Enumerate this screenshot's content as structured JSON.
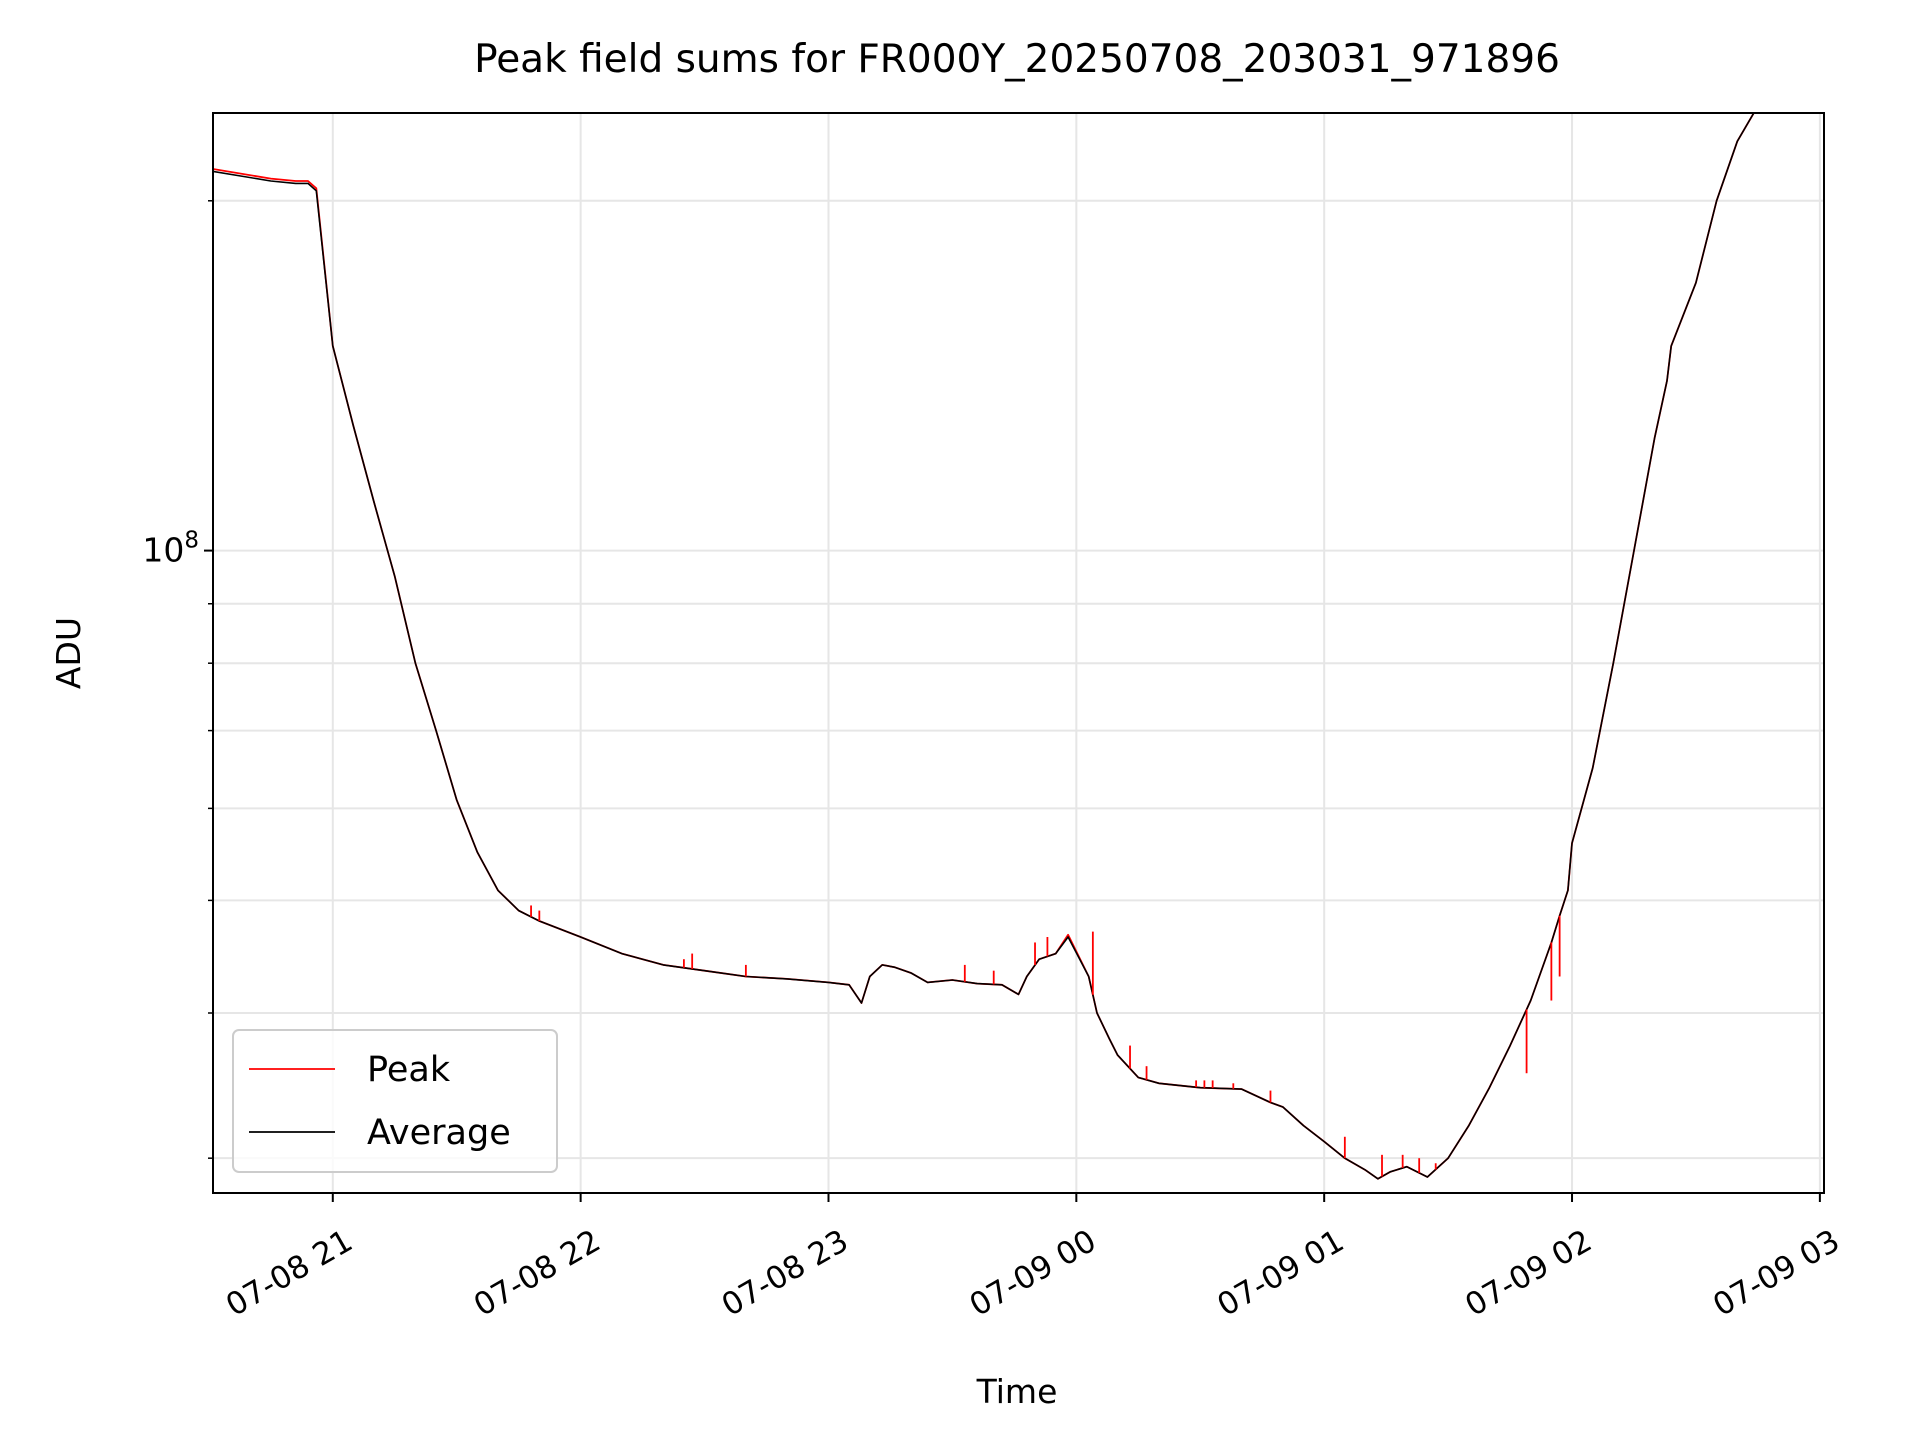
{
  "chart_data": {
    "type": "line",
    "title": "Peak field sums for FR000Y_20250708_203031_971896",
    "xlabel": "Time",
    "ylabel": "ADU",
    "yscale": "log",
    "y_tick_label": "10^8",
    "y_tick_value": 100000000,
    "x_tick_labels": [
      "07-08 21",
      "07-08 22",
      "07-08 23",
      "07-09 00",
      "07-09 01",
      "07-09 02",
      "07-09 03"
    ],
    "x_ticks": [
      "2025-07-08 21:00",
      "2025-07-08 22:00",
      "2025-07-08 23:00",
      "2025-07-09 00:00",
      "2025-07-09 01:00",
      "2025-07-09 02:00",
      "2025-07-09 03:00"
    ],
    "xlim": [
      "2025-07-08 20:31",
      "2025-07-09 03:01"
    ],
    "ylim": [
      28000000,
      238000000
    ],
    "grid": true,
    "legend_position": "lower-left",
    "series": [
      {
        "name": "Peak",
        "color": "#ff0000",
        "x": [
          "2025-07-08 20:31",
          "2025-07-08 20:45",
          "2025-07-08 20:51",
          "2025-07-08 20:54",
          "2025-07-08 20:56",
          "2025-07-08 21:00",
          "2025-07-08 21:05",
          "2025-07-08 21:10",
          "2025-07-08 21:15",
          "2025-07-08 21:20",
          "2025-07-08 21:25",
          "2025-07-08 21:30",
          "2025-07-08 21:35",
          "2025-07-08 21:40",
          "2025-07-08 21:45",
          "2025-07-08 21:50",
          "2025-07-08 22:00",
          "2025-07-08 22:10",
          "2025-07-08 22:20",
          "2025-07-08 22:30",
          "2025-07-08 22:40",
          "2025-07-08 22:50",
          "2025-07-08 23:00",
          "2025-07-08 23:05",
          "2025-07-08 23:08",
          "2025-07-08 23:10",
          "2025-07-08 23:13",
          "2025-07-08 23:16",
          "2025-07-08 23:20",
          "2025-07-08 23:24",
          "2025-07-08 23:30",
          "2025-07-08 23:36",
          "2025-07-08 23:42",
          "2025-07-08 23:46",
          "2025-07-08 23:48",
          "2025-07-08 23:51",
          "2025-07-08 23:55",
          "2025-07-08 23:58",
          "2025-07-09 00:03",
          "2025-07-09 00:05",
          "2025-07-09 00:08",
          "2025-07-09 00:10",
          "2025-07-09 00:15",
          "2025-07-09 00:20",
          "2025-07-09 00:30",
          "2025-07-09 00:40",
          "2025-07-09 00:47",
          "2025-07-09 00:50",
          "2025-07-09 00:55",
          "2025-07-09 01:00",
          "2025-07-09 01:05",
          "2025-07-09 01:10",
          "2025-07-09 01:13",
          "2025-07-09 01:16",
          "2025-07-09 01:20",
          "2025-07-09 01:25",
          "2025-07-09 01:30",
          "2025-07-09 01:35",
          "2025-07-09 01:40",
          "2025-07-09 01:45",
          "2025-07-09 01:50",
          "2025-07-09 01:55",
          "2025-07-09 01:57",
          "2025-07-09 01:59",
          "2025-07-09 02:00",
          "2025-07-09 02:05",
          "2025-07-09 02:10",
          "2025-07-09 02:15",
          "2025-07-09 02:20",
          "2025-07-09 02:23",
          "2025-07-09 02:24",
          "2025-07-09 02:30",
          "2025-07-09 02:35",
          "2025-07-09 02:40",
          "2025-07-09 02:44"
        ],
        "y": [
          213000000,
          209000000,
          208000000,
          208000000,
          205000000,
          150000000,
          128000000,
          110000000,
          95000000,
          80000000,
          70000000,
          61000000,
          55000000,
          51000000,
          49000000,
          48000000,
          46500000,
          45000000,
          44000000,
          43500000,
          43000000,
          42800000,
          42500000,
          42300000,
          40800000,
          43000000,
          44000000,
          43800000,
          43300000,
          42500000,
          42700000,
          42400000,
          42300000,
          41500000,
          43000000,
          44500000,
          45000000,
          46700000,
          43000000,
          40000000,
          38000000,
          36800000,
          35200000,
          34800000,
          34500000,
          34400000,
          33500000,
          33200000,
          32000000,
          31000000,
          30000000,
          29300000,
          28800000,
          29200000,
          29500000,
          28900000,
          30000000,
          32000000,
          34500000,
          37500000,
          41000000,
          46000000,
          48500000,
          51000000,
          56000000,
          65000000,
          80000000,
          100000000,
          125000000,
          140000000,
          150000000,
          170000000,
          200000000,
          225000000,
          238000000
        ]
      },
      {
        "name": "Average",
        "color": "#000000",
        "x": [
          "2025-07-08 20:31",
          "2025-07-08 20:45",
          "2025-07-08 20:51",
          "2025-07-08 20:54",
          "2025-07-08 20:56",
          "2025-07-08 21:00",
          "2025-07-08 21:05",
          "2025-07-08 21:10",
          "2025-07-08 21:15",
          "2025-07-08 21:20",
          "2025-07-08 21:25",
          "2025-07-08 21:30",
          "2025-07-08 21:35",
          "2025-07-08 21:40",
          "2025-07-08 21:45",
          "2025-07-08 21:50",
          "2025-07-08 22:00",
          "2025-07-08 22:10",
          "2025-07-08 22:20",
          "2025-07-08 22:30",
          "2025-07-08 22:40",
          "2025-07-08 22:50",
          "2025-07-08 23:00",
          "2025-07-08 23:05",
          "2025-07-08 23:08",
          "2025-07-08 23:10",
          "2025-07-08 23:13",
          "2025-07-08 23:16",
          "2025-07-08 23:20",
          "2025-07-08 23:24",
          "2025-07-08 23:30",
          "2025-07-08 23:36",
          "2025-07-08 23:42",
          "2025-07-08 23:46",
          "2025-07-08 23:48",
          "2025-07-08 23:51",
          "2025-07-08 23:55",
          "2025-07-08 23:58",
          "2025-07-09 00:03",
          "2025-07-09 00:05",
          "2025-07-09 00:08",
          "2025-07-09 00:10",
          "2025-07-09 00:15",
          "2025-07-09 00:20",
          "2025-07-09 00:30",
          "2025-07-09 00:40",
          "2025-07-09 00:47",
          "2025-07-09 00:50",
          "2025-07-09 00:55",
          "2025-07-09 01:00",
          "2025-07-09 01:05",
          "2025-07-09 01:10",
          "2025-07-09 01:13",
          "2025-07-09 01:16",
          "2025-07-09 01:20",
          "2025-07-09 01:25",
          "2025-07-09 01:30",
          "2025-07-09 01:35",
          "2025-07-09 01:40",
          "2025-07-09 01:45",
          "2025-07-09 01:50",
          "2025-07-09 01:55",
          "2025-07-09 01:57",
          "2025-07-09 01:59",
          "2025-07-09 02:00",
          "2025-07-09 02:05",
          "2025-07-09 02:10",
          "2025-07-09 02:15",
          "2025-07-09 02:20",
          "2025-07-09 02:23",
          "2025-07-09 02:24",
          "2025-07-09 02:30",
          "2025-07-09 02:35",
          "2025-07-09 02:40",
          "2025-07-09 02:44"
        ],
        "y": [
          212000000,
          208000000,
          207000000,
          207000000,
          204000000,
          150000000,
          128000000,
          110000000,
          95000000,
          80000000,
          70000000,
          61000000,
          55000000,
          51000000,
          49000000,
          48000000,
          46500000,
          45000000,
          44000000,
          43500000,
          43000000,
          42800000,
          42500000,
          42300000,
          40800000,
          43000000,
          44000000,
          43800000,
          43300000,
          42500000,
          42700000,
          42400000,
          42300000,
          41500000,
          43000000,
          44500000,
          45000000,
          46500000,
          43000000,
          40000000,
          38000000,
          36800000,
          35200000,
          34800000,
          34500000,
          34400000,
          33500000,
          33200000,
          32000000,
          31000000,
          30000000,
          29300000,
          28800000,
          29200000,
          29500000,
          28900000,
          30000000,
          32000000,
          34500000,
          37500000,
          41000000,
          46000000,
          48500000,
          51000000,
          56000000,
          65000000,
          80000000,
          100000000,
          125000000,
          140000000,
          150000000,
          170000000,
          200000000,
          225000000,
          238000000
        ]
      }
    ],
    "peak_spikes": [
      {
        "x": "2025-07-08 21:48",
        "y": 49500000
      },
      {
        "x": "2025-07-08 21:50",
        "y": 49000000
      },
      {
        "x": "2025-07-08 22:25",
        "y": 44500000
      },
      {
        "x": "2025-07-08 22:27",
        "y": 45000000
      },
      {
        "x": "2025-07-08 22:40",
        "y": 44000000
      },
      {
        "x": "2025-07-08 23:33",
        "y": 44000000
      },
      {
        "x": "2025-07-08 23:40",
        "y": 43500000
      },
      {
        "x": "2025-07-08 23:50",
        "y": 46000000
      },
      {
        "x": "2025-07-08 23:53",
        "y": 46500000
      },
      {
        "x": "2025-07-09 00:04",
        "y": 47000000
      },
      {
        "x": "2025-07-09 00:13",
        "y": 37500000
      },
      {
        "x": "2025-07-09 00:17",
        "y": 36000000
      },
      {
        "x": "2025-07-09 00:29",
        "y": 35000000
      },
      {
        "x": "2025-07-09 00:31",
        "y": 35000000
      },
      {
        "x": "2025-07-09 00:33",
        "y": 35000000
      },
      {
        "x": "2025-07-09 00:38",
        "y": 34800000
      },
      {
        "x": "2025-07-09 00:47",
        "y": 34300000
      },
      {
        "x": "2025-07-09 01:05",
        "y": 31300000
      },
      {
        "x": "2025-07-09 01:14",
        "y": 30200000
      },
      {
        "x": "2025-07-09 01:19",
        "y": 30200000
      },
      {
        "x": "2025-07-09 01:23",
        "y": 30000000
      },
      {
        "x": "2025-07-09 01:27",
        "y": 29700000
      },
      {
        "x": "2025-07-09 01:49",
        "y": 35500000
      },
      {
        "x": "2025-07-09 01:55",
        "y": 41000000
      },
      {
        "x": "2025-07-09 01:57",
        "y": 43000000
      }
    ]
  }
}
